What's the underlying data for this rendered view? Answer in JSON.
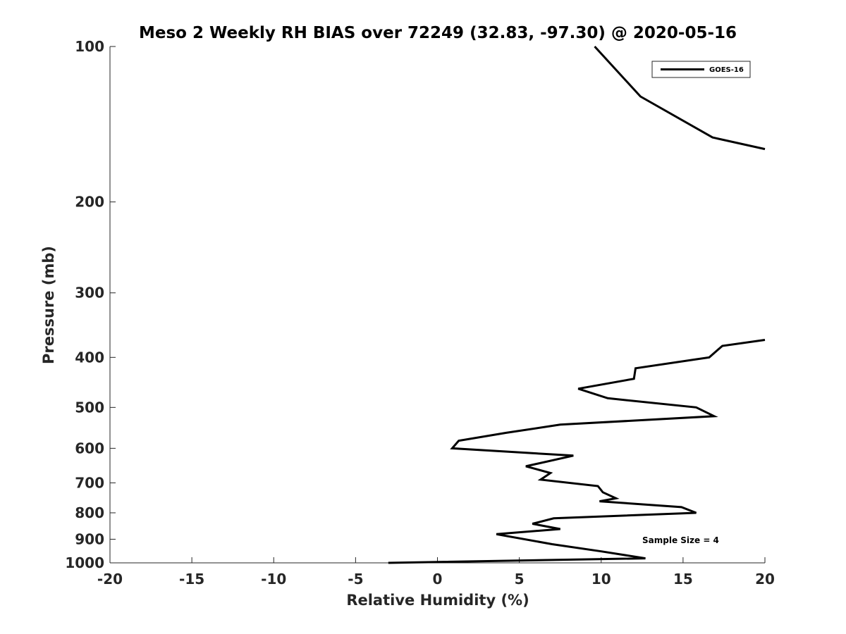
{
  "chart_data": {
    "type": "line",
    "title": "Meso 2 Weekly RH BIAS over 72249 (32.83, -97.30) @ 2020-05-16",
    "xlabel": "Relative Humidity (%)",
    "ylabel": "Pressure (mb)",
    "xlim": [
      -20,
      20
    ],
    "ylim": [
      1000,
      100
    ],
    "y_scale": "log",
    "x_ticks": [
      -20,
      -15,
      -10,
      -5,
      0,
      5,
      10,
      15,
      20
    ],
    "x_tick_labels": [
      "-20",
      "-15",
      "-10",
      "-5",
      "0",
      "5",
      "10",
      "15",
      "20"
    ],
    "y_ticks": [
      100,
      200,
      300,
      400,
      500,
      600,
      700,
      800,
      900,
      1000
    ],
    "y_tick_labels": [
      "100",
      "200",
      "300",
      "400",
      "500",
      "600",
      "700",
      "800",
      "900",
      "1000"
    ],
    "grid": false,
    "legend_position": "top-right",
    "line_color": "#000000",
    "annotation": "Sample Size = 4",
    "series": [
      {
        "name": "GOES-16",
        "segments": [
          [
            {
              "x": 9.6,
              "y": 100
            },
            {
              "x": 12.4,
              "y": 125
            },
            {
              "x": 16.8,
              "y": 150
            },
            {
              "x": 20.0,
              "y": 158
            }
          ],
          [
            {
              "x": 20.0,
              "y": 370
            },
            {
              "x": 17.4,
              "y": 380
            },
            {
              "x": 16.6,
              "y": 400
            },
            {
              "x": 12.1,
              "y": 420
            },
            {
              "x": 12.0,
              "y": 440
            },
            {
              "x": 8.6,
              "y": 460
            },
            {
              "x": 10.4,
              "y": 480
            },
            {
              "x": 15.8,
              "y": 500
            },
            {
              "x": 16.9,
              "y": 520
            },
            {
              "x": 7.5,
              "y": 540
            },
            {
              "x": 4.2,
              "y": 560
            },
            {
              "x": 1.3,
              "y": 580
            },
            {
              "x": 0.9,
              "y": 600
            },
            {
              "x": 8.3,
              "y": 620
            },
            {
              "x": 5.4,
              "y": 650
            },
            {
              "x": 6.9,
              "y": 670
            },
            {
              "x": 6.3,
              "y": 690
            },
            {
              "x": 9.8,
              "y": 710
            },
            {
              "x": 10.1,
              "y": 730
            },
            {
              "x": 10.9,
              "y": 750
            },
            {
              "x": 9.9,
              "y": 760
            },
            {
              "x": 14.9,
              "y": 780
            },
            {
              "x": 15.8,
              "y": 800
            },
            {
              "x": 7.1,
              "y": 820
            },
            {
              "x": 5.8,
              "y": 840
            },
            {
              "x": 7.5,
              "y": 860
            },
            {
              "x": 3.6,
              "y": 880
            },
            {
              "x": 7.0,
              "y": 920
            },
            {
              "x": 10.0,
              "y": 950
            },
            {
              "x": 12.7,
              "y": 980
            },
            {
              "x": -3.0,
              "y": 1000
            }
          ]
        ]
      }
    ]
  }
}
